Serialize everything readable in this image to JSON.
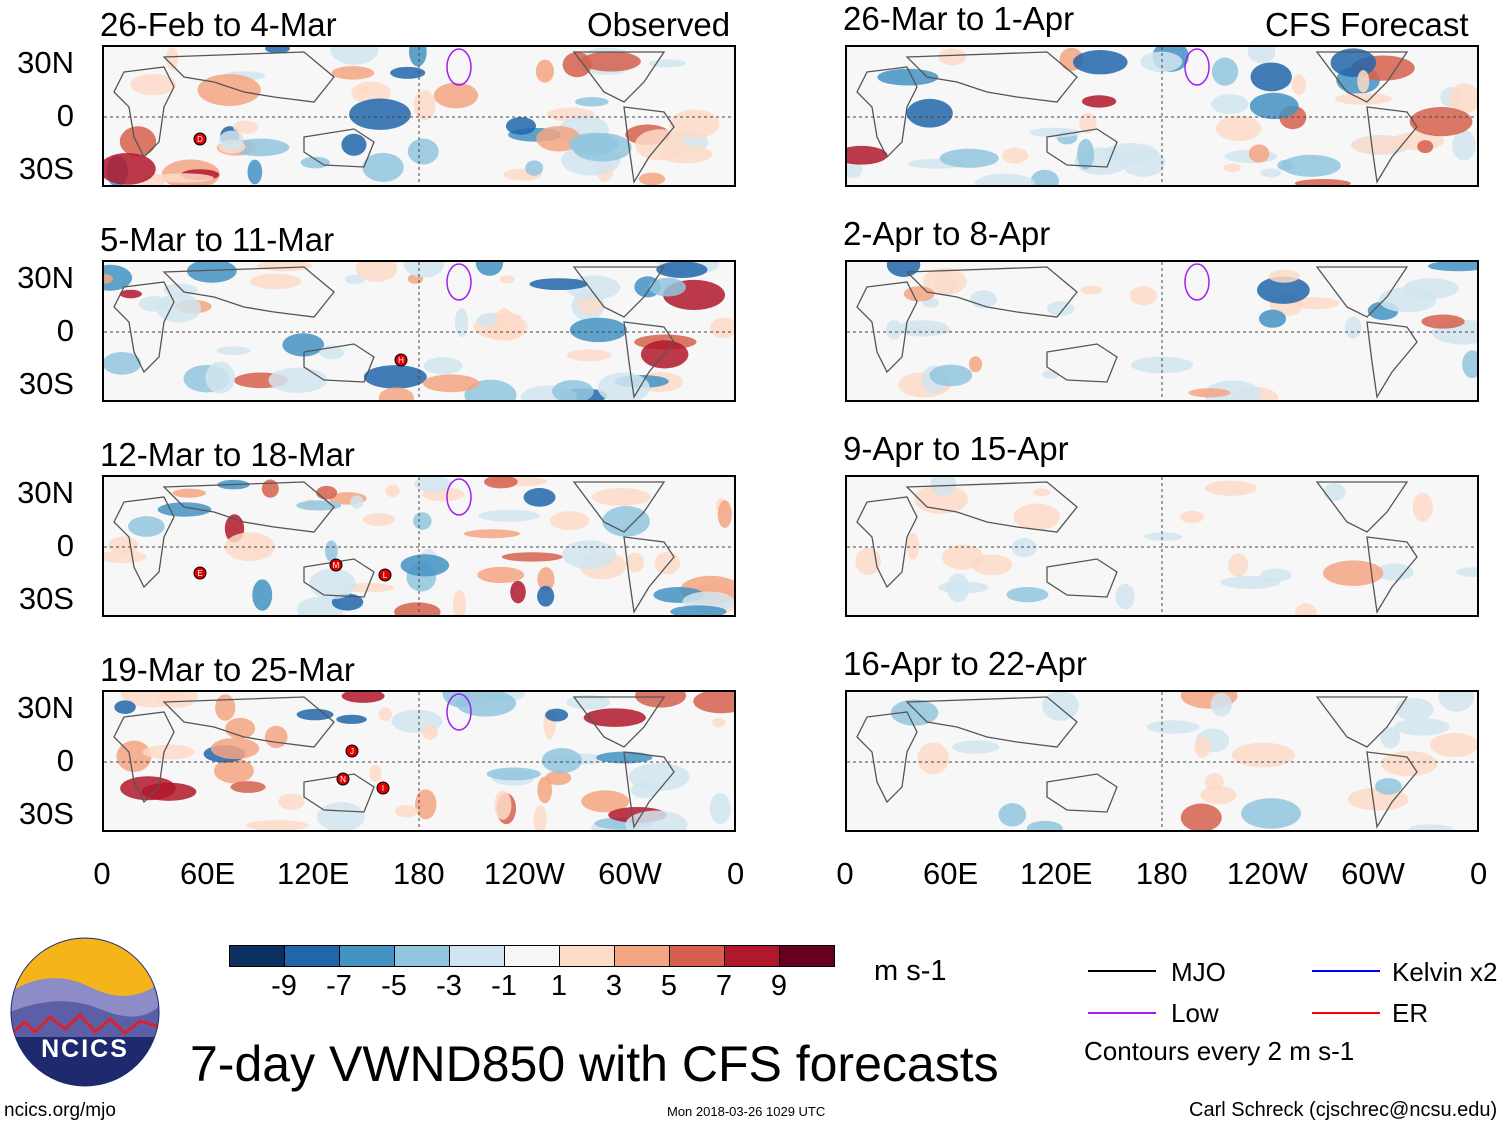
{
  "observed_label": "Observed",
  "forecast_label": "CFS Forecast",
  "observed_panels": [
    {
      "title": "26-Feb to 4-Mar",
      "storms": [
        "D"
      ]
    },
    {
      "title": "5-Mar to 11-Mar",
      "storms": [
        "H"
      ]
    },
    {
      "title": "12-Mar to 18-Mar",
      "storms": [
        "E",
        "M",
        "L"
      ]
    },
    {
      "title": "19-Mar to 25-Mar",
      "storms": [
        "J",
        "N",
        "I"
      ]
    }
  ],
  "forecast_panels": [
    {
      "title": "26-Mar to 1-Apr"
    },
    {
      "title": "2-Apr to 8-Apr"
    },
    {
      "title": "9-Apr to 15-Apr"
    },
    {
      "title": "16-Apr to 22-Apr"
    }
  ],
  "lat_labels": [
    "30N",
    "0",
    "30S"
  ],
  "lon_labels": [
    "0",
    "60E",
    "120E",
    "180",
    "120W",
    "60W",
    "0"
  ],
  "colorbar": {
    "colors": [
      "#0b3060",
      "#2166ac",
      "#4393c3",
      "#92c5de",
      "#d1e5f0",
      "#f7f7f7",
      "#fddbc7",
      "#f4a582",
      "#d6604d",
      "#b2182b",
      "#67001f"
    ],
    "labels": [
      "-9",
      "-7",
      "-5",
      "-3",
      "-1",
      "1",
      "3",
      "5",
      "7",
      "9"
    ],
    "units": "m s-1"
  },
  "legend": {
    "items": [
      {
        "label": "MJO",
        "color": "#000000"
      },
      {
        "label": "Kelvin x2",
        "color": "#0000ff"
      },
      {
        "label": "Low",
        "color": "#a020f0"
      },
      {
        "label": "ER",
        "color": "#ff0000"
      }
    ],
    "note": "Contours every 2 m s-1"
  },
  "title": "7-day VWND850 with CFS forecasts",
  "logo_text": "NCICS",
  "site": "ncics.org/mjo",
  "timestamp": "Mon 2018-03-26 1029 UTC",
  "credit": "Carl Schreck (cjschrec@ncsu.edu)"
}
